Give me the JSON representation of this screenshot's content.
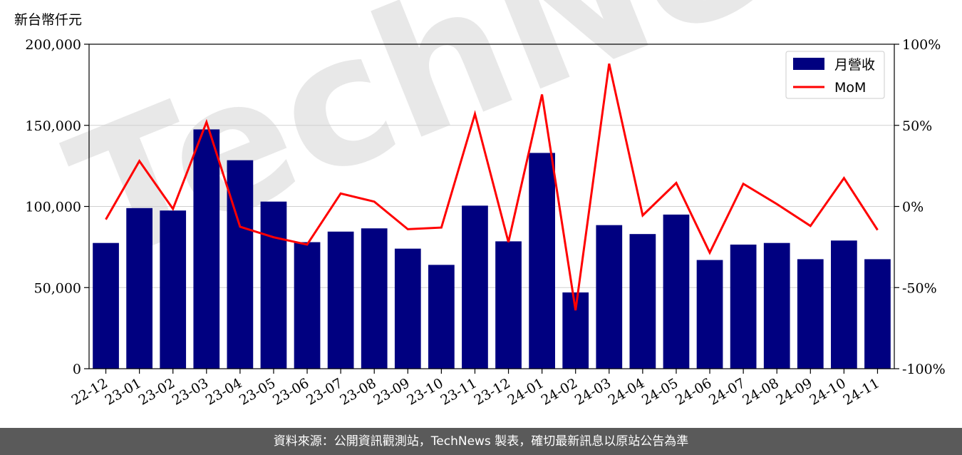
{
  "watermark": "TechNews",
  "footer": "資料來源：公開資訊觀測站，TechNews 製表，確切最新訊息以原站公告為準",
  "chart_data": {
    "type": "bar",
    "y_unit_label": "新台幣仟元",
    "categories": [
      "22-12",
      "23-01",
      "23-02",
      "23-03",
      "23-04",
      "23-05",
      "23-06",
      "23-07",
      "23-08",
      "23-09",
      "23-10",
      "23-11",
      "23-12",
      "24-01",
      "24-02",
      "24-03",
      "24-04",
      "24-05",
      "24-06",
      "24-07",
      "24-08",
      "24-09",
      "24-10",
      "24-11"
    ],
    "series": [
      {
        "name": "月營收",
        "type": "bar",
        "axis": "left",
        "color": "#000080",
        "values": [
          77500,
          99000,
          97500,
          147500,
          128500,
          103000,
          78000,
          84500,
          86500,
          74000,
          64000,
          100500,
          78500,
          133000,
          47000,
          88500,
          83000,
          95000,
          67000,
          76500,
          77500,
          67500,
          79000,
          67500
        ]
      },
      {
        "name": "MoM",
        "type": "line",
        "axis": "right",
        "color": "#ff0000",
        "values": [
          -8,
          28,
          -1.5,
          52,
          -12.5,
          -19,
          -23.5,
          8,
          3,
          -14,
          -13,
          57,
          -22,
          69,
          -64,
          88,
          -5.5,
          14.5,
          -28.5,
          14,
          1.5,
          -12,
          17.5,
          -14.5
        ]
      }
    ],
    "left_axis": {
      "ylim": [
        0,
        200000
      ],
      "ticks": [
        0,
        50000,
        100000,
        150000,
        200000
      ],
      "tick_labels": [
        "0",
        "50,000",
        "100,000",
        "150,000",
        "200,000"
      ]
    },
    "right_axis": {
      "ylim": [
        -100,
        100
      ],
      "ticks": [
        -100,
        -50,
        0,
        50,
        100
      ],
      "tick_labels": [
        "-100%",
        "-50%",
        "0%",
        "50%",
        "100%"
      ]
    },
    "grid": true,
    "legend_position": "top-right"
  }
}
